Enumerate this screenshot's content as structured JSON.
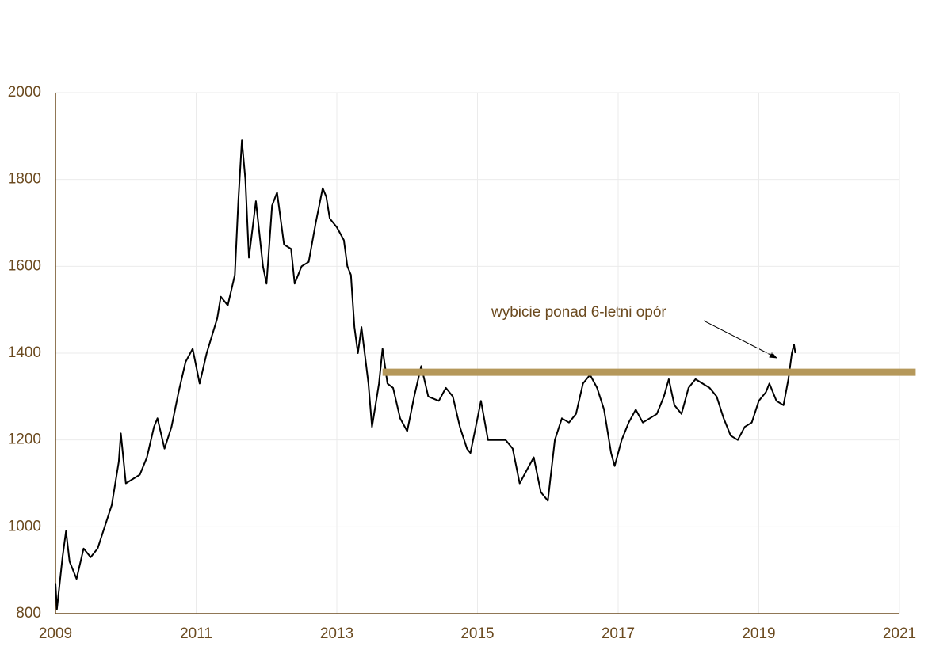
{
  "chart_data": {
    "type": "line",
    "x": [
      2009.0,
      2009.02,
      2009.1,
      2009.15,
      2009.2,
      2009.3,
      2009.4,
      2009.5,
      2009.6,
      2009.7,
      2009.8,
      2009.9,
      2009.93,
      2010.0,
      2010.1,
      2010.2,
      2010.3,
      2010.4,
      2010.45,
      2010.55,
      2010.65,
      2010.75,
      2010.85,
      2010.95,
      2011.05,
      2011.15,
      2011.3,
      2011.35,
      2011.45,
      2011.55,
      2011.6,
      2011.65,
      2011.7,
      2011.75,
      2011.85,
      2011.95,
      2012.0,
      2012.08,
      2012.15,
      2012.25,
      2012.35,
      2012.4,
      2012.5,
      2012.6,
      2012.7,
      2012.8,
      2012.85,
      2012.9,
      2013.0,
      2013.1,
      2013.15,
      2013.2,
      2013.25,
      2013.3,
      2013.35,
      2013.45,
      2013.5,
      2013.6,
      2013.65,
      2013.72,
      2013.8,
      2013.9,
      2014.0,
      2014.1,
      2014.2,
      2014.3,
      2014.45,
      2014.55,
      2014.65,
      2014.75,
      2014.85,
      2014.9,
      2015.0,
      2015.05,
      2015.15,
      2015.3,
      2015.4,
      2015.5,
      2015.6,
      2015.7,
      2015.8,
      2015.9,
      2016.0,
      2016.1,
      2016.2,
      2016.3,
      2016.4,
      2016.5,
      2016.6,
      2016.7,
      2016.8,
      2016.9,
      2016.95,
      2017.05,
      2017.15,
      2017.25,
      2017.35,
      2017.45,
      2017.55,
      2017.65,
      2017.72,
      2017.8,
      2017.9,
      2018.0,
      2018.1,
      2018.2,
      2018.3,
      2018.4,
      2018.5,
      2018.6,
      2018.7,
      2018.8,
      2018.9,
      2019.0,
      2019.1,
      2019.15,
      2019.25,
      2019.35,
      2019.42,
      2019.47,
      2019.5,
      2019.52
    ],
    "series": [
      {
        "color": "#000000",
        "values": [
          870,
          810,
          930,
          990,
          920,
          880,
          950,
          930,
          950,
          1000,
          1050,
          1150,
          1215,
          1100,
          1110,
          1120,
          1160,
          1230,
          1250,
          1180,
          1230,
          1310,
          1380,
          1410,
          1330,
          1400,
          1480,
          1530,
          1510,
          1580,
          1750,
          1890,
          1800,
          1620,
          1750,
          1600,
          1560,
          1740,
          1770,
          1650,
          1640,
          1560,
          1600,
          1610,
          1700,
          1780,
          1760,
          1710,
          1690,
          1660,
          1600,
          1580,
          1460,
          1400,
          1460,
          1330,
          1230,
          1330,
          1410,
          1330,
          1320,
          1250,
          1220,
          1300,
          1370,
          1300,
          1290,
          1320,
          1300,
          1230,
          1180,
          1170,
          1250,
          1290,
          1200,
          1200,
          1200,
          1180,
          1100,
          1130,
          1160,
          1080,
          1060,
          1200,
          1250,
          1240,
          1260,
          1330,
          1350,
          1320,
          1270,
          1170,
          1140,
          1200,
          1240,
          1270,
          1240,
          1250,
          1260,
          1300,
          1340,
          1280,
          1260,
          1320,
          1340,
          1330,
          1320,
          1300,
          1250,
          1210,
          1200,
          1230,
          1240,
          1290,
          1310,
          1330,
          1290,
          1280,
          1340,
          1400,
          1420,
          1400
        ]
      }
    ],
    "xlim": [
      2009,
      2021
    ],
    "xticks": [
      2009,
      2011,
      2013,
      2015,
      2017,
      2019,
      2021
    ],
    "ylim": [
      800,
      2000
    ],
    "yticks": [
      800,
      1000,
      1200,
      1400,
      1600,
      1800,
      2000
    ],
    "grid": true,
    "resistance": {
      "value": 1356,
      "x": [
        2013.65,
        2021.23
      ],
      "color": "#b5985a"
    },
    "annotation": "wybicie ponad 6-letni opór"
  }
}
